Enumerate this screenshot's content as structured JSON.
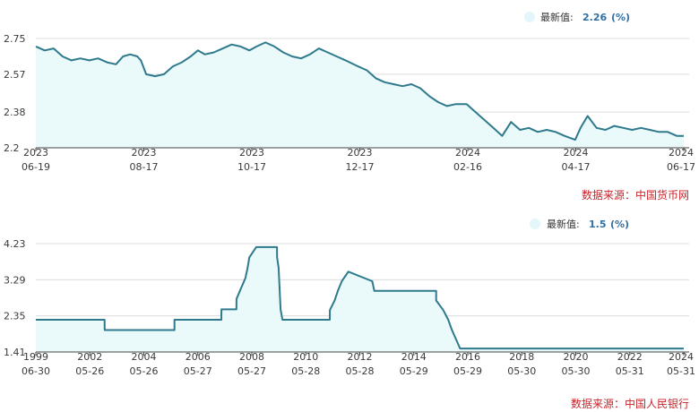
{
  "colors": {
    "line": "#2e7a8c",
    "fill": "#eafafb",
    "grid": "#dcdcdc",
    "axis": "#444444",
    "legend_dot": "#e3f6fa",
    "value_text": "#2f6fa3",
    "source_text": "#c8242b"
  },
  "charts": [
    {
      "legend": {
        "label": "最新值:",
        "value": "2.26",
        "unit": "(%)"
      },
      "source": "数据来源：中国货币网"
    },
    {
      "legend": {
        "label": "最新值:",
        "value": "1.5",
        "unit": "(%)"
      },
      "source": "数据来源：中国人民银行"
    }
  ],
  "chart_data": [
    {
      "type": "area",
      "title": "",
      "xlabel": "",
      "ylabel": "",
      "ylim": [
        2.2,
        2.75
      ],
      "y_ticks": [
        "2.75",
        "2.57",
        "2.38",
        "2.2"
      ],
      "x_range": [
        "2023-06-19",
        "2024-06-17"
      ],
      "x_ticks": [
        {
          "year": "2023",
          "md": "06-19"
        },
        {
          "year": "2023",
          "md": "08-17"
        },
        {
          "year": "2023",
          "md": "10-17"
        },
        {
          "year": "2023",
          "md": "12-17"
        },
        {
          "year": "2024",
          "md": "02-16"
        },
        {
          "year": "2024",
          "md": "04-17"
        },
        {
          "year": "2024",
          "md": "06-17"
        }
      ],
      "grid": "horizontal",
      "series": [
        {
          "values": [
            [
              "2023-06-19",
              2.71
            ],
            [
              "2023-06-24",
              2.69
            ],
            [
              "2023-06-29",
              2.7
            ],
            [
              "2023-07-04",
              2.66
            ],
            [
              "2023-07-09",
              2.64
            ],
            [
              "2023-07-14",
              2.65
            ],
            [
              "2023-07-19",
              2.64
            ],
            [
              "2023-07-24",
              2.65
            ],
            [
              "2023-07-29",
              2.63
            ],
            [
              "2023-08-03",
              2.62
            ],
            [
              "2023-08-07",
              2.66
            ],
            [
              "2023-08-11",
              2.67
            ],
            [
              "2023-08-15",
              2.66
            ],
            [
              "2023-08-17",
              2.64
            ],
            [
              "2023-08-20",
              2.57
            ],
            [
              "2023-08-25",
              2.56
            ],
            [
              "2023-08-30",
              2.57
            ],
            [
              "2023-09-04",
              2.61
            ],
            [
              "2023-09-09",
              2.63
            ],
            [
              "2023-09-14",
              2.66
            ],
            [
              "2023-09-18",
              2.69
            ],
            [
              "2023-09-22",
              2.67
            ],
            [
              "2023-09-27",
              2.68
            ],
            [
              "2023-10-02",
              2.7
            ],
            [
              "2023-10-07",
              2.72
            ],
            [
              "2023-10-12",
              2.71
            ],
            [
              "2023-10-17",
              2.69
            ],
            [
              "2023-10-21",
              2.71
            ],
            [
              "2023-10-26",
              2.73
            ],
            [
              "2023-10-31",
              2.71
            ],
            [
              "2023-11-05",
              2.68
            ],
            [
              "2023-11-10",
              2.66
            ],
            [
              "2023-11-15",
              2.65
            ],
            [
              "2023-11-20",
              2.67
            ],
            [
              "2023-11-25",
              2.7
            ],
            [
              "2023-11-30",
              2.68
            ],
            [
              "2023-12-05",
              2.66
            ],
            [
              "2023-12-10",
              2.64
            ],
            [
              "2023-12-17",
              2.61
            ],
            [
              "2023-12-22",
              2.59
            ],
            [
              "2023-12-27",
              2.55
            ],
            [
              "2024-01-01",
              2.53
            ],
            [
              "2024-01-06",
              2.52
            ],
            [
              "2024-01-11",
              2.51
            ],
            [
              "2024-01-16",
              2.52
            ],
            [
              "2024-01-21",
              2.5
            ],
            [
              "2024-01-26",
              2.46
            ],
            [
              "2024-01-31",
              2.43
            ],
            [
              "2024-02-05",
              2.41
            ],
            [
              "2024-02-10",
              2.42
            ],
            [
              "2024-02-16",
              2.42
            ],
            [
              "2024-02-21",
              2.38
            ],
            [
              "2024-02-26",
              2.34
            ],
            [
              "2024-03-02",
              2.3
            ],
            [
              "2024-03-07",
              2.26
            ],
            [
              "2024-03-12",
              2.33
            ],
            [
              "2024-03-17",
              2.29
            ],
            [
              "2024-03-22",
              2.3
            ],
            [
              "2024-03-27",
              2.28
            ],
            [
              "2024-04-01",
              2.29
            ],
            [
              "2024-04-06",
              2.28
            ],
            [
              "2024-04-11",
              2.26
            ],
            [
              "2024-04-17",
              2.24
            ],
            [
              "2024-04-20",
              2.3
            ],
            [
              "2024-04-24",
              2.36
            ],
            [
              "2024-04-29",
              2.3
            ],
            [
              "2024-05-04",
              2.29
            ],
            [
              "2024-05-09",
              2.31
            ],
            [
              "2024-05-14",
              2.3
            ],
            [
              "2024-05-19",
              2.29
            ],
            [
              "2024-05-24",
              2.3
            ],
            [
              "2024-05-29",
              2.29
            ],
            [
              "2024-06-03",
              2.28
            ],
            [
              "2024-06-08",
              2.28
            ],
            [
              "2024-06-13",
              2.26
            ],
            [
              "2024-06-17",
              2.26
            ]
          ]
        }
      ]
    },
    {
      "type": "area",
      "title": "",
      "xlabel": "",
      "ylabel": "",
      "ylim": [
        1.41,
        4.23
      ],
      "y_ticks": [
        "4.23",
        "3.29",
        "2.35",
        "1.41"
      ],
      "x_range": [
        "1999-06-30",
        "2024-05-31"
      ],
      "x_ticks": [
        {
          "year": "1999",
          "md": "06-30"
        },
        {
          "year": "2002",
          "md": "05-26"
        },
        {
          "year": "2004",
          "md": "05-26"
        },
        {
          "year": "2006",
          "md": "05-27"
        },
        {
          "year": "2008",
          "md": "05-27"
        },
        {
          "year": "2010",
          "md": "05-28"
        },
        {
          "year": "2012",
          "md": "05-28"
        },
        {
          "year": "2014",
          "md": "05-29"
        },
        {
          "year": "2016",
          "md": "05-29"
        },
        {
          "year": "2018",
          "md": "05-30"
        },
        {
          "year": "2020",
          "md": "05-30"
        },
        {
          "year": "2022",
          "md": "05-31"
        },
        {
          "year": "2024",
          "md": "05-31"
        }
      ],
      "grid": "horizontal",
      "series": [
        {
          "values": [
            [
              "1999-06-30",
              2.25
            ],
            [
              "2002-02-20",
              2.25
            ],
            [
              "2002-02-21",
              1.98
            ],
            [
              "2004-10-28",
              1.98
            ],
            [
              "2004-10-29",
              2.25
            ],
            [
              "2006-08-18",
              2.25
            ],
            [
              "2006-08-19",
              2.52
            ],
            [
              "2007-03-18",
              2.52
            ],
            [
              "2007-03-19",
              2.79
            ],
            [
              "2007-05-19",
              3.06
            ],
            [
              "2007-07-21",
              3.33
            ],
            [
              "2007-08-22",
              3.6
            ],
            [
              "2007-09-15",
              3.87
            ],
            [
              "2007-12-21",
              4.14
            ],
            [
              "2008-10-08",
              4.14
            ],
            [
              "2008-10-09",
              3.87
            ],
            [
              "2008-10-30",
              3.6
            ],
            [
              "2008-11-27",
              2.52
            ],
            [
              "2008-12-23",
              2.25
            ],
            [
              "2010-10-19",
              2.25
            ],
            [
              "2010-10-20",
              2.5
            ],
            [
              "2010-12-26",
              2.75
            ],
            [
              "2011-02-09",
              3.0
            ],
            [
              "2011-04-06",
              3.25
            ],
            [
              "2011-07-07",
              3.5
            ],
            [
              "2012-06-07",
              3.25
            ],
            [
              "2012-07-06",
              3.0
            ],
            [
              "2014-11-21",
              3.0
            ],
            [
              "2014-11-22",
              2.75
            ],
            [
              "2015-03-01",
              2.5
            ],
            [
              "2015-05-11",
              2.25
            ],
            [
              "2015-06-28",
              2.0
            ],
            [
              "2015-08-26",
              1.75
            ],
            [
              "2015-10-24",
              1.5
            ],
            [
              "2024-05-31",
              1.5
            ]
          ]
        }
      ]
    }
  ]
}
